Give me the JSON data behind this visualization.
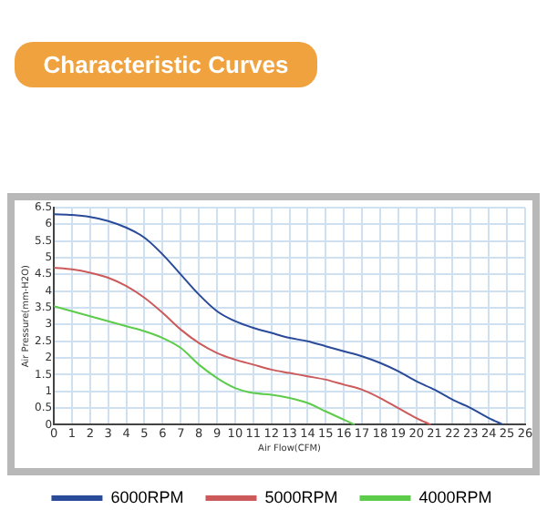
{
  "chart_data": {
    "type": "line",
    "title": "Characteristic Curves",
    "xlabel": "Air Flow(CFM)",
    "ylabel": "Air Pressure(mm-H2O)",
    "xlim": [
      0,
      26
    ],
    "xticks": [
      0,
      1,
      2,
      3,
      4,
      5,
      6,
      7,
      8,
      9,
      10,
      11,
      12,
      13,
      14,
      15,
      16,
      17,
      18,
      19,
      20,
      21,
      22,
      23,
      24,
      25,
      26
    ],
    "ylim": [
      0,
      6.5
    ],
    "yticks": [
      0,
      0.5,
      1,
      1.5,
      2,
      2.5,
      3,
      3.5,
      4,
      4.5,
      5,
      5.5,
      6,
      6.5
    ],
    "grid": true,
    "legend": "bottom",
    "marker": "none",
    "line_style": "solid",
    "series": [
      {
        "name": "6000RPM",
        "color": "#2a4a9a",
        "x": [
          0,
          1,
          2,
          3,
          4,
          5,
          6,
          7,
          8,
          9,
          10,
          11,
          12,
          13,
          14,
          15,
          16,
          17,
          18,
          19,
          20,
          21,
          22,
          23,
          24,
          24.8
        ],
        "values": [
          6.3,
          6.28,
          6.22,
          6.1,
          5.9,
          5.6,
          5.1,
          4.5,
          3.9,
          3.4,
          3.1,
          2.9,
          2.75,
          2.6,
          2.5,
          2.35,
          2.2,
          2.05,
          1.85,
          1.6,
          1.3,
          1.05,
          0.75,
          0.5,
          0.2,
          0
        ]
      },
      {
        "name": "5000RPM",
        "color": "#cc5a5a",
        "x": [
          0,
          1,
          2,
          3,
          4,
          5,
          6,
          7,
          8,
          9,
          10,
          11,
          12,
          13,
          14,
          15,
          16,
          17,
          18,
          19,
          20,
          20.8
        ],
        "values": [
          4.7,
          4.65,
          4.55,
          4.4,
          4.15,
          3.8,
          3.35,
          2.85,
          2.45,
          2.15,
          1.95,
          1.8,
          1.65,
          1.55,
          1.45,
          1.35,
          1.2,
          1.05,
          0.8,
          0.5,
          0.2,
          0
        ]
      },
      {
        "name": "4000RPM",
        "color": "#5ccc4a",
        "x": [
          0,
          1,
          2,
          3,
          4,
          5,
          6,
          7,
          8,
          9,
          10,
          11,
          12,
          13,
          14,
          15,
          16,
          16.6
        ],
        "values": [
          3.55,
          3.4,
          3.25,
          3.1,
          2.95,
          2.8,
          2.6,
          2.3,
          1.8,
          1.4,
          1.1,
          0.95,
          0.9,
          0.8,
          0.65,
          0.4,
          0.15,
          0
        ]
      }
    ]
  }
}
